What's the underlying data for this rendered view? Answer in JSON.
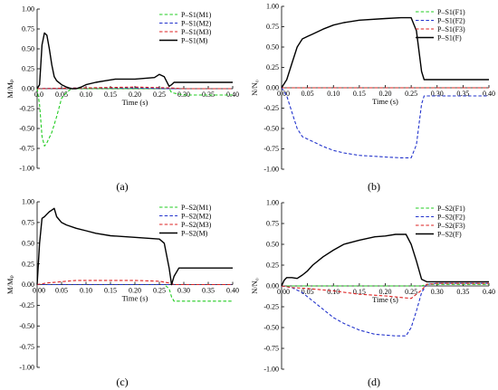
{
  "chart_data": [
    {
      "type": "line",
      "panel_label": "(a)",
      "xlabel": "Time (s)",
      "ylabel": "M/Mₚ",
      "xlim": [
        0.0,
        0.4
      ],
      "ylim": [
        -1.0,
        1.0
      ],
      "xticks": [
        0.0,
        0.05,
        0.1,
        0.15,
        0.2,
        0.25,
        0.3,
        0.35,
        0.4
      ],
      "xtick_labels": [
        "0.0",
        "0.05",
        "0.10",
        "0.15",
        "0.20",
        "0.25",
        "0.30",
        "0.35",
        "0.40"
      ],
      "yticks": [
        1.0,
        0.75,
        0.5,
        0.25,
        0.0,
        -0.25,
        -0.5,
        -0.75,
        -1.0
      ],
      "ytick_labels": [
        "1.00",
        "0.75",
        "0.50",
        "0.25",
        "0.00",
        "-0.25",
        "-0.50",
        "-0.75",
        "-1.00"
      ],
      "legend_position": "top-right",
      "series": [
        {
          "name": "P–S1(M1)",
          "color": "#22cc22",
          "dash": "dashed",
          "x": [
            0,
            0.005,
            0.01,
            0.015,
            0.02,
            0.03,
            0.04,
            0.05,
            0.06,
            0.07,
            0.1,
            0.15,
            0.2,
            0.25,
            0.27,
            0.275,
            0.3,
            0.4
          ],
          "y": [
            0,
            -0.2,
            -0.6,
            -0.72,
            -0.68,
            -0.55,
            -0.35,
            -0.12,
            -0.05,
            0.0,
            0.0,
            0.0,
            0.0,
            0.0,
            0.0,
            -0.05,
            -0.08,
            -0.08
          ]
        },
        {
          "name": "P–S1(M2)",
          "color": "#2233cc",
          "dash": "dashed",
          "x": [
            0,
            0.1,
            0.2,
            0.27,
            0.3,
            0.4
          ],
          "y": [
            0,
            0.01,
            0.01,
            0.0,
            0.0,
            0.0
          ]
        },
        {
          "name": "P–S1(M3)",
          "color": "#dd2222",
          "dash": "dashed",
          "x": [
            0,
            0.1,
            0.2,
            0.27,
            0.3,
            0.4
          ],
          "y": [
            0,
            0.01,
            0.02,
            0.01,
            0.0,
            0.0
          ]
        },
        {
          "name": "P–S1(M)",
          "color": "#000000",
          "dash": "solid",
          "x": [
            0,
            0.005,
            0.01,
            0.015,
            0.02,
            0.025,
            0.03,
            0.035,
            0.04,
            0.05,
            0.06,
            0.07,
            0.08,
            0.09,
            0.1,
            0.12,
            0.14,
            0.16,
            0.18,
            0.2,
            0.22,
            0.24,
            0.25,
            0.26,
            0.27,
            0.275,
            0.28,
            0.3,
            0.35,
            0.4
          ],
          "y": [
            0,
            0.05,
            0.55,
            0.7,
            0.67,
            0.5,
            0.3,
            0.15,
            0.1,
            0.05,
            0.02,
            0.0,
            0.0,
            0.02,
            0.05,
            0.08,
            0.1,
            0.12,
            0.12,
            0.12,
            0.13,
            0.14,
            0.18,
            0.15,
            0.03,
            0.05,
            0.08,
            0.08,
            0.08,
            0.08
          ]
        }
      ]
    },
    {
      "type": "line",
      "panel_label": "(b)",
      "xlabel": "Time (s)",
      "ylabel": "N/N₀",
      "xlim": [
        0.0,
        0.4
      ],
      "ylim": [
        -1.0,
        1.0
      ],
      "xticks": [
        0.0,
        0.05,
        0.1,
        0.15,
        0.2,
        0.25,
        0.3,
        0.35,
        0.4
      ],
      "xtick_labels": [
        "0.00",
        "0.05",
        "0.10",
        "0.15",
        "0.20",
        "0.25",
        "0.30",
        "0.35",
        "0.40"
      ],
      "yticks": [
        1.0,
        0.75,
        0.5,
        0.25,
        0.0,
        -0.25,
        -0.5,
        -0.75,
        -1.0
      ],
      "ytick_labels": [
        "1.00",
        "0.75",
        "0.50",
        "0.25",
        "0.00",
        "-0.25",
        "-0.50",
        "-0.75",
        "-1.00"
      ],
      "legend_position": "top-right",
      "series": [
        {
          "name": "P–S1(F1)",
          "color": "#22cc22",
          "dash": "dashed",
          "x": [
            0,
            0.1,
            0.2,
            0.27,
            0.4
          ],
          "y": [
            0,
            0.0,
            0.0,
            0.0,
            0.0
          ]
        },
        {
          "name": "P–S1(F2)",
          "color": "#2233cc",
          "dash": "dashed",
          "x": [
            0,
            0.01,
            0.02,
            0.03,
            0.04,
            0.05,
            0.06,
            0.08,
            0.1,
            0.12,
            0.15,
            0.2,
            0.23,
            0.25,
            0.26,
            0.27,
            0.275,
            0.28,
            0.3,
            0.4
          ],
          "y": [
            0,
            -0.1,
            -0.3,
            -0.5,
            -0.6,
            -0.63,
            -0.66,
            -0.72,
            -0.77,
            -0.8,
            -0.83,
            -0.85,
            -0.86,
            -0.86,
            -0.7,
            -0.2,
            -0.1,
            -0.1,
            -0.1,
            -0.1
          ]
        },
        {
          "name": "P–S1(F3)",
          "color": "#dd2222",
          "dash": "dashed",
          "x": [
            0,
            0.1,
            0.2,
            0.27,
            0.4
          ],
          "y": [
            0,
            0.0,
            0.0,
            0.0,
            0.0
          ]
        },
        {
          "name": "P–S1(F)",
          "color": "#000000",
          "dash": "solid",
          "x": [
            0,
            0.01,
            0.02,
            0.03,
            0.04,
            0.05,
            0.06,
            0.08,
            0.1,
            0.12,
            0.15,
            0.2,
            0.23,
            0.25,
            0.26,
            0.27,
            0.275,
            0.28,
            0.3,
            0.4
          ],
          "y": [
            0,
            0.1,
            0.3,
            0.5,
            0.6,
            0.63,
            0.66,
            0.72,
            0.77,
            0.8,
            0.83,
            0.85,
            0.86,
            0.86,
            0.7,
            0.2,
            0.1,
            0.1,
            0.1,
            0.1
          ]
        }
      ]
    },
    {
      "type": "line",
      "panel_label": "(c)",
      "xlabel": "Time (s)",
      "ylabel": "M/Mₚ",
      "xlim": [
        0.0,
        0.4
      ],
      "ylim": [
        -1.0,
        1.0
      ],
      "xticks": [
        0.0,
        0.05,
        0.1,
        0.15,
        0.2,
        0.25,
        0.3,
        0.35,
        0.4
      ],
      "xtick_labels": [
        "0.00",
        "0.05",
        "0.10",
        "0.15",
        "0.20",
        "0.25",
        "0.30",
        "0.35",
        "0.40"
      ],
      "yticks": [
        1.0,
        0.75,
        0.5,
        0.25,
        0.0,
        -0.25,
        -0.5,
        -0.75,
        -1.0
      ],
      "ytick_labels": [
        "1.00",
        "0.75",
        "0.50",
        "0.25",
        "0.00",
        "-0.25",
        "-0.50",
        "-0.75",
        "-1.00"
      ],
      "legend_position": "top-right",
      "series": [
        {
          "name": "P–S2(M1)",
          "color": "#22cc22",
          "dash": "dashed",
          "x": [
            0,
            0.1,
            0.2,
            0.26,
            0.27,
            0.275,
            0.28,
            0.3,
            0.4
          ],
          "y": [
            0,
            0.0,
            0.0,
            0.0,
            -0.05,
            -0.15,
            -0.2,
            -0.2,
            -0.2
          ]
        },
        {
          "name": "P–S2(M2)",
          "color": "#2233cc",
          "dash": "dashed",
          "x": [
            0,
            0.1,
            0.2,
            0.3,
            0.4
          ],
          "y": [
            0,
            0.0,
            0.0,
            0.0,
            0.0
          ]
        },
        {
          "name": "P–S2(M3)",
          "color": "#dd2222",
          "dash": "dashed",
          "x": [
            0,
            0.02,
            0.04,
            0.06,
            0.08,
            0.1,
            0.15,
            0.2,
            0.25,
            0.27,
            0.28,
            0.3,
            0.4
          ],
          "y": [
            0,
            0.02,
            0.03,
            0.04,
            0.05,
            0.05,
            0.05,
            0.05,
            0.04,
            0.02,
            0.0,
            0.0,
            0.0
          ]
        },
        {
          "name": "P–S2(M)",
          "color": "#000000",
          "dash": "solid",
          "x": [
            0,
            0.005,
            0.01,
            0.015,
            0.02,
            0.025,
            0.03,
            0.035,
            0.04,
            0.05,
            0.06,
            0.08,
            0.1,
            0.12,
            0.15,
            0.2,
            0.25,
            0.26,
            0.27,
            0.275,
            0.28,
            0.29,
            0.3,
            0.35,
            0.4
          ],
          "y": [
            0,
            0.5,
            0.8,
            0.82,
            0.85,
            0.88,
            0.9,
            0.92,
            0.82,
            0.75,
            0.72,
            0.68,
            0.65,
            0.62,
            0.59,
            0.57,
            0.55,
            0.5,
            0.2,
            0.0,
            0.1,
            0.2,
            0.2,
            0.2,
            0.2
          ]
        }
      ]
    },
    {
      "type": "line",
      "panel_label": "(d)",
      "xlabel": "Time (s)",
      "ylabel": "N/N₀",
      "xlim": [
        0.0,
        0.4
      ],
      "ylim": [
        -1.0,
        1.0
      ],
      "xticks": [
        0.0,
        0.05,
        0.1,
        0.15,
        0.2,
        0.25,
        0.3,
        0.35,
        0.4
      ],
      "xtick_labels": [
        "0.00",
        "0.05",
        "0.10",
        "0.15",
        "0.20",
        "0.25",
        "0.30",
        "0.35",
        "0.40"
      ],
      "yticks": [
        1.0,
        0.75,
        0.5,
        0.25,
        0.0,
        -0.25,
        -0.5,
        -0.75,
        -1.0
      ],
      "ytick_labels": [
        "1.00",
        "0.75",
        "0.50",
        "0.25",
        "0.00",
        "-0.25",
        "-0.50",
        "-0.75",
        "-1.00"
      ],
      "legend_position": "top-right",
      "series": [
        {
          "name": "P–S2(F1)",
          "color": "#22cc22",
          "dash": "dashed",
          "x": [
            0,
            0.1,
            0.2,
            0.27,
            0.28,
            0.4
          ],
          "y": [
            0,
            0.0,
            0.0,
            0.0,
            0.02,
            0.02
          ]
        },
        {
          "name": "P–S2(F2)",
          "color": "#2233cc",
          "dash": "dashed",
          "x": [
            0,
            0.02,
            0.04,
            0.06,
            0.08,
            0.1,
            0.12,
            0.15,
            0.18,
            0.2,
            0.22,
            0.24,
            0.25,
            0.26,
            0.27,
            0.28,
            0.3,
            0.4
          ],
          "y": [
            0,
            -0.02,
            -0.08,
            -0.18,
            -0.28,
            -0.38,
            -0.45,
            -0.53,
            -0.58,
            -0.59,
            -0.6,
            -0.6,
            -0.5,
            -0.3,
            -0.08,
            0.02,
            0.03,
            0.03
          ]
        },
        {
          "name": "P–S2(F3)",
          "color": "#dd2222",
          "dash": "dashed",
          "x": [
            0,
            0.02,
            0.05,
            0.1,
            0.15,
            0.2,
            0.25,
            0.27,
            0.28,
            0.3,
            0.4
          ],
          "y": [
            0,
            -0.02,
            -0.03,
            -0.06,
            -0.1,
            -0.12,
            -0.15,
            -0.05,
            0.02,
            0.03,
            0.03
          ]
        },
        {
          "name": "P–S2(F)",
          "color": "#000000",
          "dash": "solid",
          "x": [
            0,
            0.005,
            0.01,
            0.02,
            0.03,
            0.04,
            0.05,
            0.06,
            0.08,
            0.1,
            0.12,
            0.15,
            0.18,
            0.2,
            0.22,
            0.24,
            0.25,
            0.26,
            0.27,
            0.28,
            0.3,
            0.4
          ],
          "y": [
            0,
            0.07,
            0.1,
            0.1,
            0.09,
            0.13,
            0.18,
            0.25,
            0.35,
            0.43,
            0.5,
            0.55,
            0.59,
            0.6,
            0.62,
            0.62,
            0.5,
            0.3,
            0.08,
            0.05,
            0.05,
            0.05
          ]
        }
      ]
    }
  ]
}
